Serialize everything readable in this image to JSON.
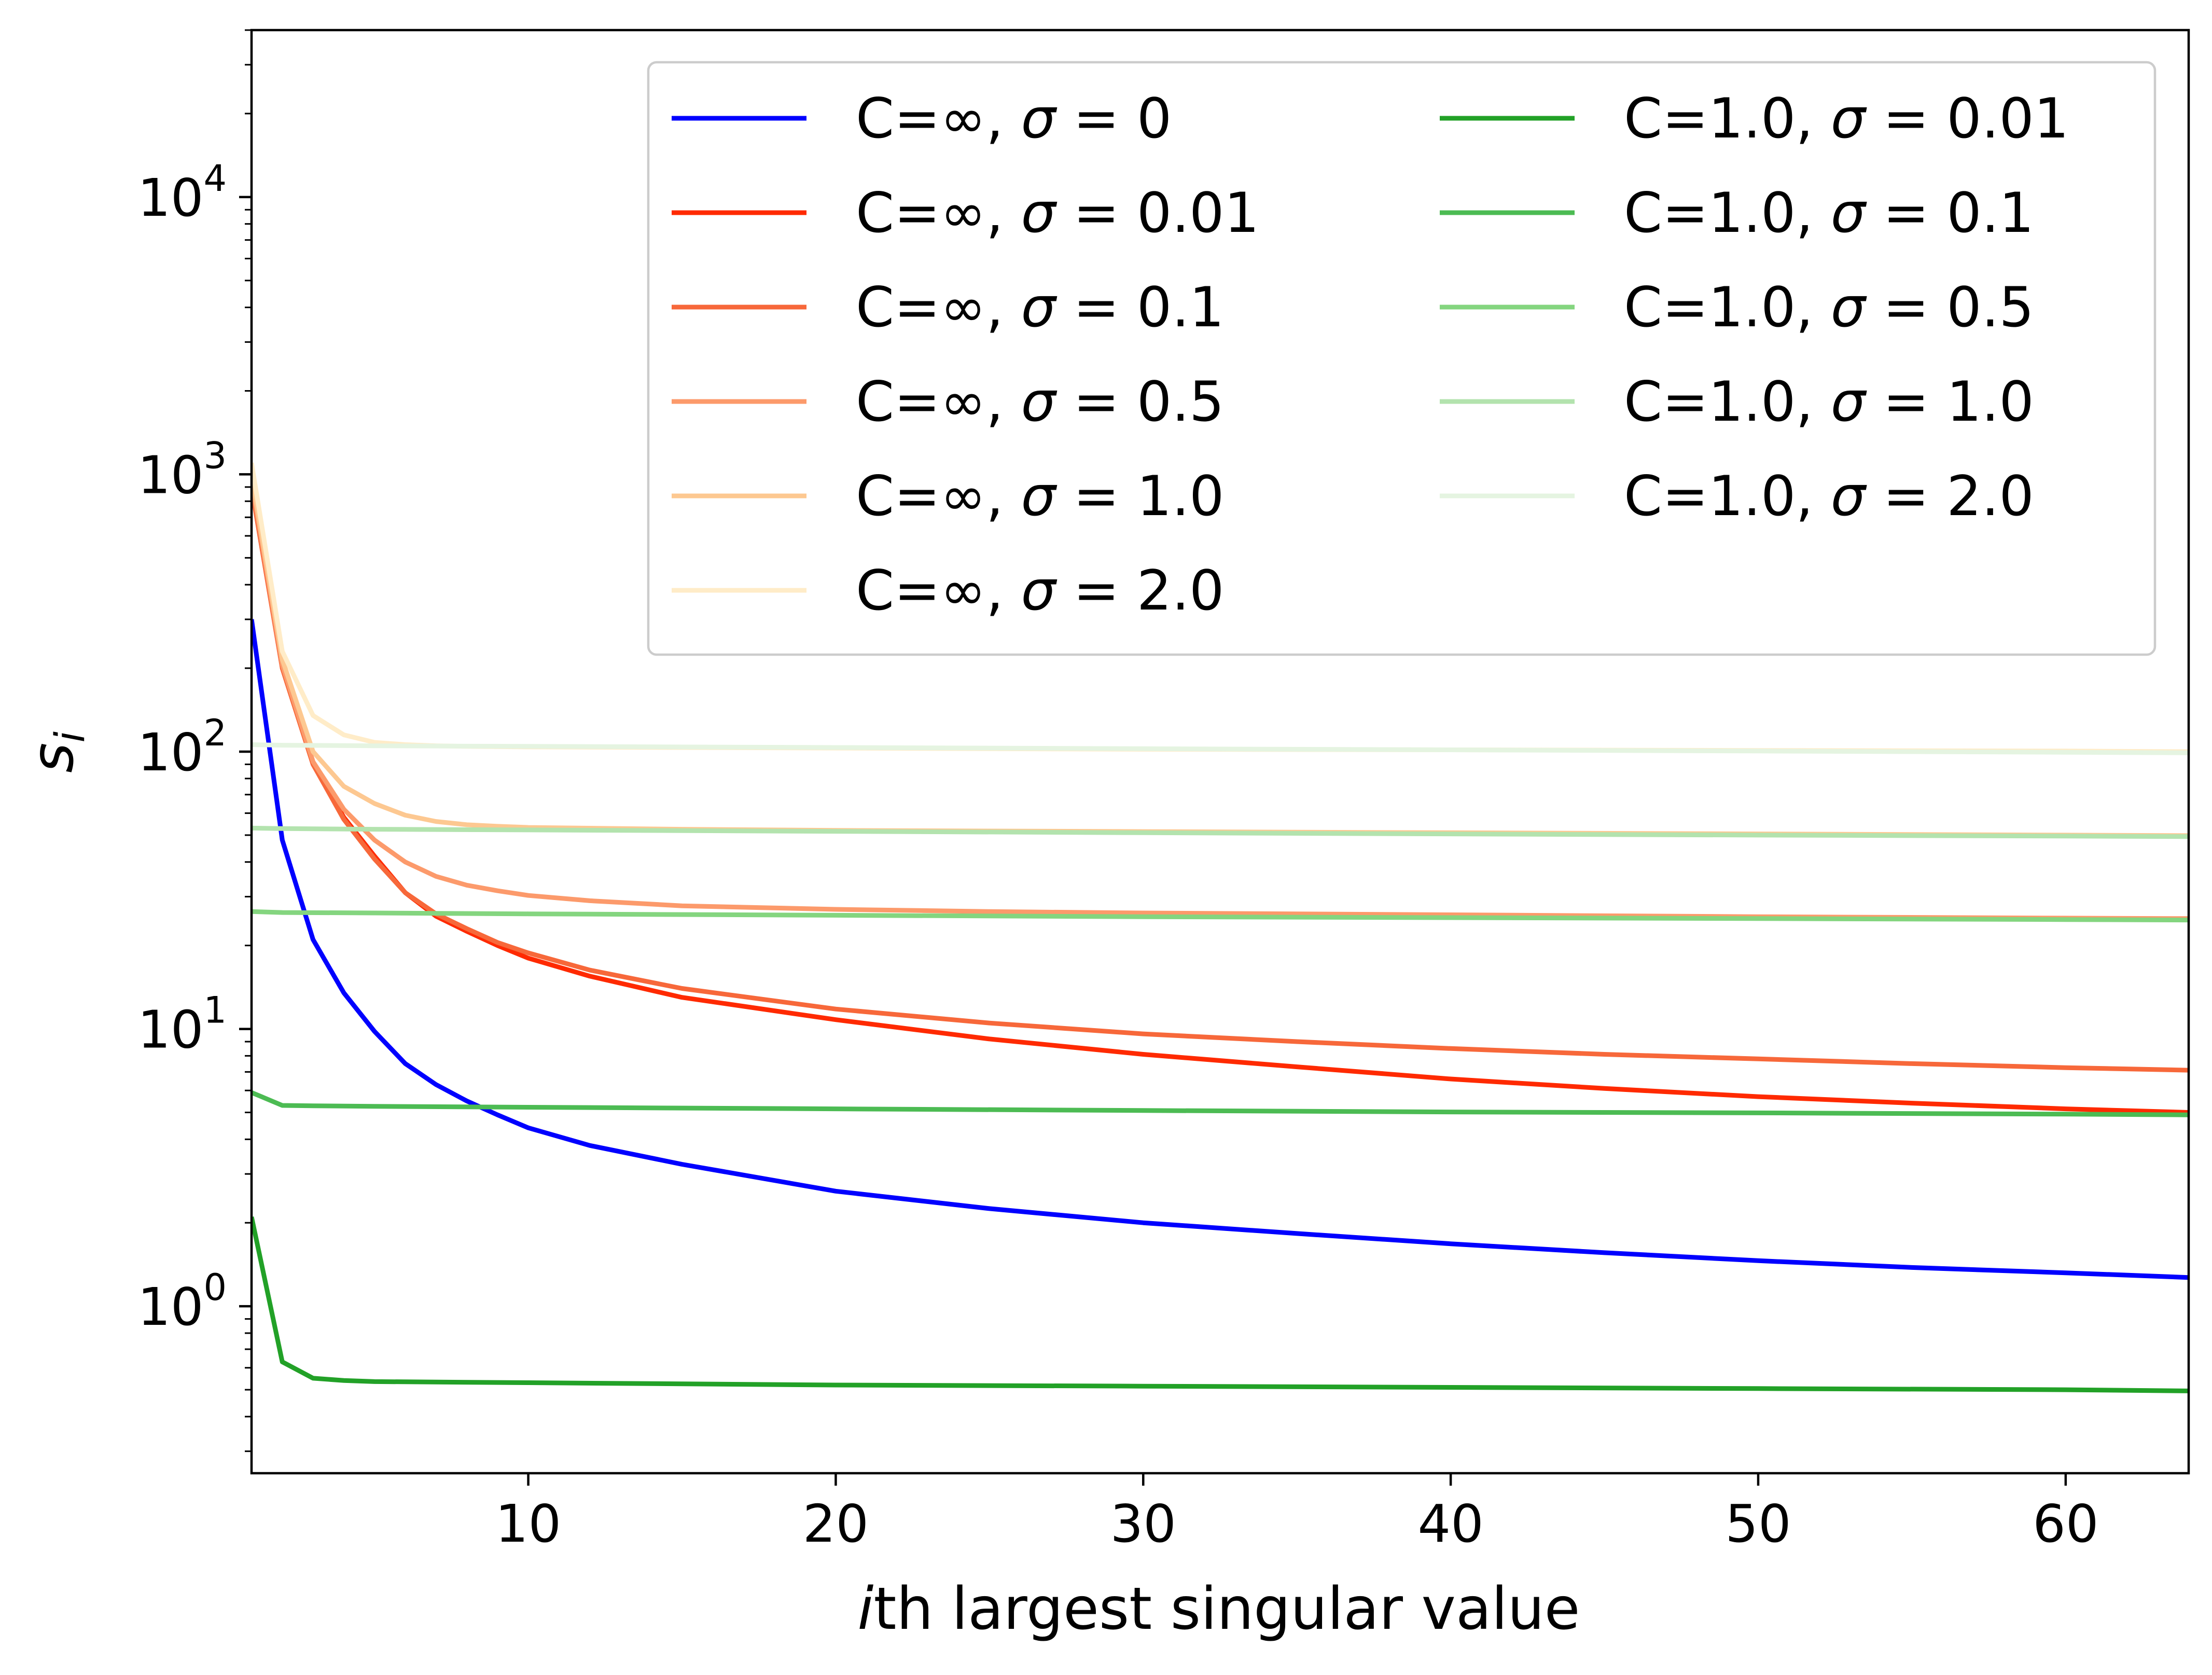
{
  "chart_data": {
    "type": "line",
    "title": "",
    "xlabel_italic": "i",
    "xlabel_rest": "th largest singular value",
    "ylabel_main": "s",
    "ylabel_sub": "i",
    "xlim": [
      1,
      64
    ],
    "ylim": [
      0.25,
      40000
    ],
    "yscale": "log",
    "grid": false,
    "legend_placement": "top-right",
    "legend_columns": 2,
    "x_ticks": [
      {
        "value": 10,
        "label": "10"
      },
      {
        "value": 20,
        "label": "20"
      },
      {
        "value": 30,
        "label": "30"
      },
      {
        "value": 40,
        "label": "40"
      },
      {
        "value": 50,
        "label": "50"
      },
      {
        "value": 60,
        "label": "60"
      }
    ],
    "y_ticks": [
      {
        "value": 1,
        "base": "10",
        "exp": "0"
      },
      {
        "value": 10,
        "base": "10",
        "exp": "1"
      },
      {
        "value": 100,
        "base": "10",
        "exp": "2"
      },
      {
        "value": 1000,
        "base": "10",
        "exp": "3"
      },
      {
        "value": 10000,
        "base": "10",
        "exp": "4"
      }
    ],
    "series": [
      {
        "name_c": "C=∞, ",
        "name_sigma": "σ",
        "name_val": " = 0",
        "color": "#0000ff",
        "points": [
          [
            1,
            300
          ],
          [
            2,
            48
          ],
          [
            3,
            21
          ],
          [
            4,
            13.5
          ],
          [
            5,
            9.8
          ],
          [
            6,
            7.5
          ],
          [
            7,
            6.3
          ],
          [
            8,
            5.5
          ],
          [
            9,
            4.9
          ],
          [
            10,
            4.4
          ],
          [
            12,
            3.8
          ],
          [
            15,
            3.25
          ],
          [
            20,
            2.6
          ],
          [
            25,
            2.25
          ],
          [
            30,
            2.0
          ],
          [
            35,
            1.83
          ],
          [
            40,
            1.68
          ],
          [
            45,
            1.56
          ],
          [
            50,
            1.46
          ],
          [
            55,
            1.38
          ],
          [
            60,
            1.32
          ],
          [
            64,
            1.27
          ]
        ]
      },
      {
        "name_c": "C=∞, ",
        "name_sigma": "σ",
        "name_val": " = 0.01",
        "color": "#ff2a00",
        "points": [
          [
            1,
            900
          ],
          [
            2,
            200
          ],
          [
            3,
            90
          ],
          [
            4,
            58
          ],
          [
            5,
            42
          ],
          [
            6,
            31
          ],
          [
            7,
            25.5
          ],
          [
            8,
            22.5
          ],
          [
            9,
            20
          ],
          [
            10,
            18
          ],
          [
            12,
            15.5
          ],
          [
            15,
            13
          ],
          [
            20,
            10.8
          ],
          [
            25,
            9.2
          ],
          [
            30,
            8.1
          ],
          [
            35,
            7.3
          ],
          [
            40,
            6.6
          ],
          [
            45,
            6.1
          ],
          [
            50,
            5.7
          ],
          [
            55,
            5.4
          ],
          [
            60,
            5.15
          ],
          [
            64,
            5.0
          ]
        ]
      },
      {
        "name_c": "C=∞, ",
        "name_sigma": "σ",
        "name_val": " = 0.1",
        "color": "#f7683a",
        "points": [
          [
            1,
            900
          ],
          [
            2,
            200
          ],
          [
            3,
            90
          ],
          [
            4,
            57
          ],
          [
            5,
            41
          ],
          [
            6,
            31
          ],
          [
            7,
            26
          ],
          [
            8,
            23
          ],
          [
            9,
            20.5
          ],
          [
            10,
            18.8
          ],
          [
            12,
            16.3
          ],
          [
            15,
            14
          ],
          [
            20,
            11.8
          ],
          [
            25,
            10.5
          ],
          [
            30,
            9.6
          ],
          [
            35,
            9.0
          ],
          [
            40,
            8.5
          ],
          [
            45,
            8.1
          ],
          [
            50,
            7.8
          ],
          [
            55,
            7.5
          ],
          [
            60,
            7.25
          ],
          [
            64,
            7.1
          ]
        ]
      },
      {
        "name_c": "C=∞, ",
        "name_sigma": "σ",
        "name_val": " = 0.5",
        "color": "#fc9a6b",
        "points": [
          [
            1,
            950
          ],
          [
            2,
            205
          ],
          [
            3,
            92
          ],
          [
            4,
            62
          ],
          [
            5,
            48
          ],
          [
            6,
            40
          ],
          [
            7,
            35.5
          ],
          [
            8,
            33
          ],
          [
            9,
            31.5
          ],
          [
            10,
            30.3
          ],
          [
            12,
            29
          ],
          [
            15,
            27.8
          ],
          [
            20,
            27
          ],
          [
            25,
            26.5
          ],
          [
            30,
            26.2
          ],
          [
            40,
            25.8
          ],
          [
            50,
            25.4
          ],
          [
            60,
            25.1
          ],
          [
            64,
            25.0
          ]
        ]
      },
      {
        "name_c": "C=∞, ",
        "name_sigma": "σ",
        "name_val": " = 1.0",
        "color": "#fdc891",
        "points": [
          [
            1,
            1000
          ],
          [
            2,
            215
          ],
          [
            3,
            100
          ],
          [
            4,
            75
          ],
          [
            5,
            65
          ],
          [
            6,
            59
          ],
          [
            7,
            56
          ],
          [
            8,
            54.5
          ],
          [
            9,
            53.8
          ],
          [
            10,
            53.3
          ],
          [
            15,
            52.5
          ],
          [
            20,
            52
          ],
          [
            30,
            51.5
          ],
          [
            40,
            51
          ],
          [
            50,
            50.5
          ],
          [
            60,
            50
          ],
          [
            64,
            49.8
          ]
        ]
      },
      {
        "name_c": "C=∞, ",
        "name_sigma": "σ",
        "name_val": " = 2.0",
        "color": "#ffecc8",
        "points": [
          [
            1,
            1100
          ],
          [
            2,
            230
          ],
          [
            3,
            135
          ],
          [
            4,
            115
          ],
          [
            5,
            108
          ],
          [
            6,
            106
          ],
          [
            7,
            105
          ],
          [
            8,
            104.5
          ],
          [
            10,
            104
          ],
          [
            20,
            103
          ],
          [
            30,
            102
          ],
          [
            40,
            101.5
          ],
          [
            50,
            101
          ],
          [
            60,
            100.5
          ],
          [
            64,
            100
          ]
        ]
      },
      {
        "name_c": "C=1.0, ",
        "name_sigma": "σ",
        "name_val": " = 0.01",
        "color": "#22a127",
        "points": [
          [
            1,
            2.1
          ],
          [
            2,
            0.63
          ],
          [
            3,
            0.55
          ],
          [
            4,
            0.54
          ],
          [
            5,
            0.535
          ],
          [
            10,
            0.53
          ],
          [
            20,
            0.52
          ],
          [
            30,
            0.515
          ],
          [
            40,
            0.51
          ],
          [
            50,
            0.505
          ],
          [
            60,
            0.5
          ],
          [
            64,
            0.495
          ]
        ]
      },
      {
        "name_c": "C=1.0, ",
        "name_sigma": "σ",
        "name_val": " = 0.1",
        "color": "#4cbb53",
        "points": [
          [
            1,
            5.9
          ],
          [
            2,
            5.3
          ],
          [
            3,
            5.28
          ],
          [
            5,
            5.26
          ],
          [
            10,
            5.22
          ],
          [
            20,
            5.15
          ],
          [
            30,
            5.08
          ],
          [
            40,
            5.02
          ],
          [
            50,
            4.98
          ],
          [
            60,
            4.93
          ],
          [
            64,
            4.9
          ]
        ]
      },
      {
        "name_c": "C=1.0, ",
        "name_sigma": "σ",
        "name_val": " = 0.5",
        "color": "#84d57f",
        "points": [
          [
            1,
            26.5
          ],
          [
            2,
            26.3
          ],
          [
            5,
            26.2
          ],
          [
            10,
            26
          ],
          [
            20,
            25.7
          ],
          [
            30,
            25.4
          ],
          [
            40,
            25.2
          ],
          [
            50,
            25
          ],
          [
            60,
            24.8
          ],
          [
            64,
            24.7
          ]
        ]
      },
      {
        "name_c": "C=1.0, ",
        "name_sigma": "σ",
        "name_val": " = 1.0",
        "color": "#b3e3ae",
        "points": [
          [
            1,
            53
          ],
          [
            2,
            52.8
          ],
          [
            5,
            52.5
          ],
          [
            10,
            52.2
          ],
          [
            20,
            51.6
          ],
          [
            30,
            51
          ],
          [
            40,
            50.5
          ],
          [
            50,
            50
          ],
          [
            60,
            49.6
          ],
          [
            64,
            49.4
          ]
        ]
      },
      {
        "name_c": "C=1.0, ",
        "name_sigma": "σ",
        "name_val": " = 2.0",
        "color": "#e5f4e1",
        "points": [
          [
            1,
            106
          ],
          [
            2,
            105.5
          ],
          [
            5,
            105
          ],
          [
            10,
            104.5
          ],
          [
            20,
            103.5
          ],
          [
            30,
            102.5
          ],
          [
            40,
            101.5
          ],
          [
            50,
            100.5
          ],
          [
            60,
            99.5
          ],
          [
            64,
            99
          ]
        ]
      }
    ]
  }
}
